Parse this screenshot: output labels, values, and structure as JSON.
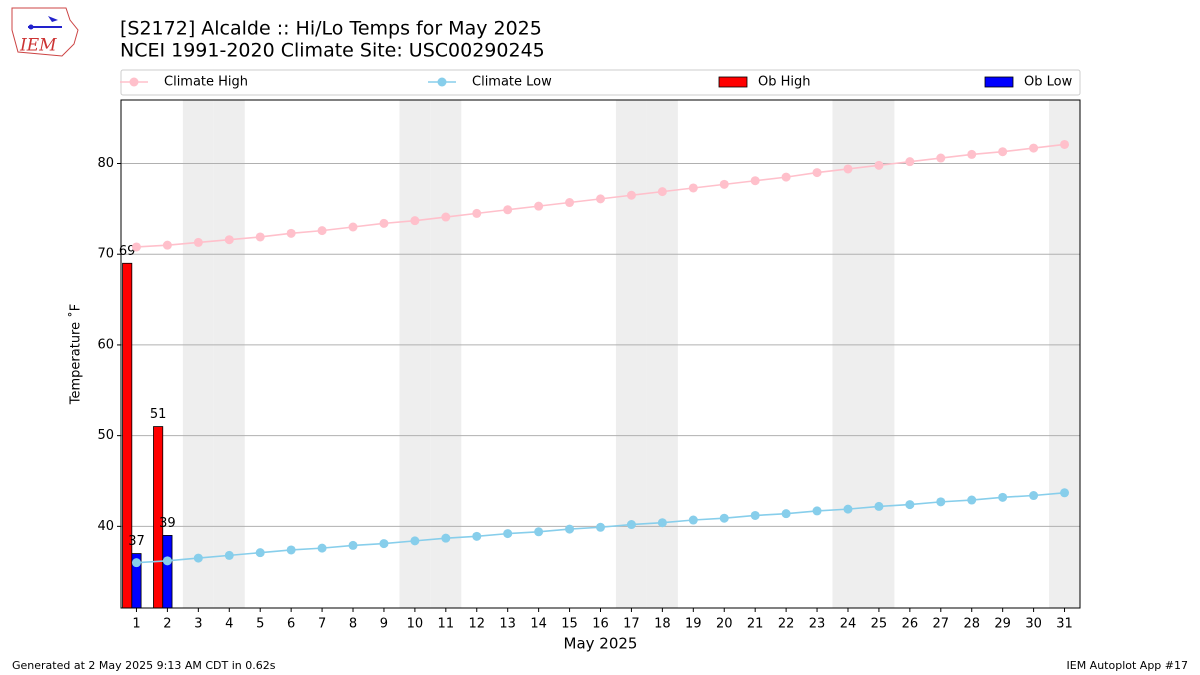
{
  "logo_text": "IEM",
  "footer_left": "Generated at 2 May 2025 9:13 AM CDT in 0.62s",
  "footer_right": "IEM Autoplot App #17",
  "chart_data": {
    "type": "line",
    "title": "[S2172] Alcalde :: Hi/Lo Temps for May 2025",
    "subtitle": "NCEI 1991-2020 Climate Site: USC00290245",
    "xlabel": "May 2025",
    "ylabel": "Temperature ˚F",
    "x": [
      1,
      2,
      3,
      4,
      5,
      6,
      7,
      8,
      9,
      10,
      11,
      12,
      13,
      14,
      15,
      16,
      17,
      18,
      19,
      20,
      21,
      22,
      23,
      24,
      25,
      26,
      27,
      28,
      29,
      30,
      31
    ],
    "xlim": [
      0.5,
      31.5
    ],
    "xticks": [
      1,
      2,
      3,
      4,
      5,
      6,
      7,
      8,
      9,
      10,
      11,
      12,
      13,
      14,
      15,
      16,
      17,
      18,
      19,
      20,
      21,
      22,
      23,
      24,
      25,
      26,
      27,
      28,
      29,
      30,
      31
    ],
    "ylim": [
      31,
      87
    ],
    "yticks": [
      40,
      50,
      60,
      70,
      80
    ],
    "grid": true,
    "legend": "top",
    "series": [
      {
        "name": "Climate High",
        "type": "line",
        "color": "#ffc0cb",
        "values": [
          70.8,
          71.0,
          71.3,
          71.6,
          71.9,
          72.3,
          72.6,
          73.0,
          73.4,
          73.7,
          74.1,
          74.5,
          74.9,
          75.3,
          75.7,
          76.1,
          76.5,
          76.9,
          77.3,
          77.7,
          78.1,
          78.5,
          79.0,
          79.4,
          79.8,
          80.2,
          80.6,
          81.0,
          81.3,
          81.7,
          82.1
        ]
      },
      {
        "name": "Climate Low",
        "type": "line",
        "color": "#87ceeb",
        "values": [
          36.0,
          36.2,
          36.5,
          36.8,
          37.1,
          37.4,
          37.6,
          37.9,
          38.1,
          38.4,
          38.7,
          38.9,
          39.2,
          39.4,
          39.7,
          39.9,
          40.2,
          40.4,
          40.7,
          40.9,
          41.2,
          41.4,
          41.7,
          41.9,
          42.2,
          42.4,
          42.7,
          42.9,
          43.2,
          43.4,
          43.7
        ]
      },
      {
        "name": "Ob High",
        "type": "bar",
        "color": "#ff0000",
        "values": [
          69,
          51,
          null,
          null,
          null,
          null,
          null,
          null,
          null,
          null,
          null,
          null,
          null,
          null,
          null,
          null,
          null,
          null,
          null,
          null,
          null,
          null,
          null,
          null,
          null,
          null,
          null,
          null,
          null,
          null,
          null
        ]
      },
      {
        "name": "Ob Low",
        "type": "bar",
        "color": "#0000ff",
        "values": [
          37,
          39,
          null,
          null,
          null,
          null,
          null,
          null,
          null,
          null,
          null,
          null,
          null,
          null,
          null,
          null,
          null,
          null,
          null,
          null,
          null,
          null,
          null,
          null,
          null,
          null,
          null,
          null,
          null,
          null,
          null
        ]
      }
    ]
  }
}
